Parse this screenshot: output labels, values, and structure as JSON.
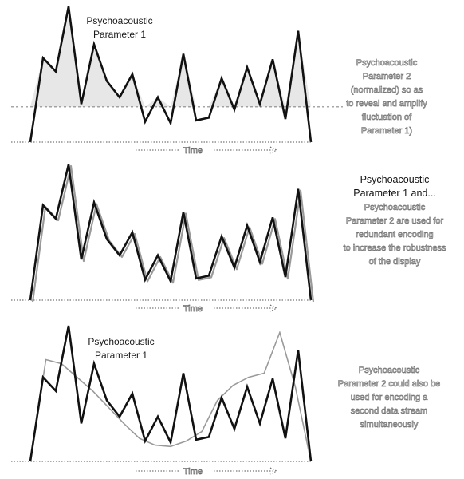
{
  "panels": [
    {
      "id": "panel-1",
      "title_lines": [
        "Psychoacoustic",
        "Parameter 1"
      ],
      "side_lines": [
        "Psychoacoustic",
        "Parameter 2",
        "(normalized) so as",
        "to reveal and amplify",
        "fluctuation of",
        "Parameter 1)"
      ],
      "axis_label": "Time",
      "series_primary": [
        0,
        0.62,
        0.52,
        1.0,
        0.28,
        0.72,
        0.45,
        0.33,
        0.5,
        0.15,
        0.33,
        0.14,
        0.65,
        0.16,
        0.18,
        0.47,
        0.24,
        0.55,
        0.28,
        0.61,
        0.17,
        0.82,
        0.0
      ],
      "reference_level": 0.26
    },
    {
      "id": "panel-2",
      "title_lines": [
        "Psychoacoustic",
        "Parameter 1 and..."
      ],
      "side_lines": [
        "Psychoacoustic",
        "Parameter 2 are used for",
        "redundant encoding",
        "to increase the robustness",
        "of the display"
      ],
      "axis_label": "Time",
      "series_primary": [
        0,
        0.7,
        0.6,
        1.0,
        0.3,
        0.72,
        0.45,
        0.33,
        0.5,
        0.15,
        0.33,
        0.14,
        0.65,
        0.16,
        0.18,
        0.47,
        0.24,
        0.55,
        0.28,
        0.61,
        0.17,
        0.82,
        0.0
      ]
    },
    {
      "id": "panel-3",
      "title_lines": [
        "Psychoacoustic",
        "Parameter 1"
      ],
      "side_lines": [
        "Psychoacoustic",
        "Parameter 2 could also be",
        "used for encoding a",
        "second data stream",
        "simultaneously"
      ],
      "axis_label": "Time",
      "series_primary": [
        0,
        0.62,
        0.52,
        1.0,
        0.28,
        0.72,
        0.45,
        0.33,
        0.5,
        0.15,
        0.33,
        0.14,
        0.65,
        0.16,
        0.18,
        0.47,
        0.24,
        0.55,
        0.28,
        0.61,
        0.17,
        0.82,
        0.0
      ],
      "series_secondary": [
        0.0,
        0.75,
        0.72,
        0.62,
        0.52,
        0.4,
        0.28,
        0.17,
        0.12,
        0.11,
        0.15,
        0.22,
        0.45,
        0.56,
        0.62,
        0.65,
        0.95,
        0.55,
        0.0
      ]
    }
  ],
  "colors": {
    "primary": "#111111",
    "secondary": "#9a9a9a",
    "light_text_outline": "#777777"
  }
}
